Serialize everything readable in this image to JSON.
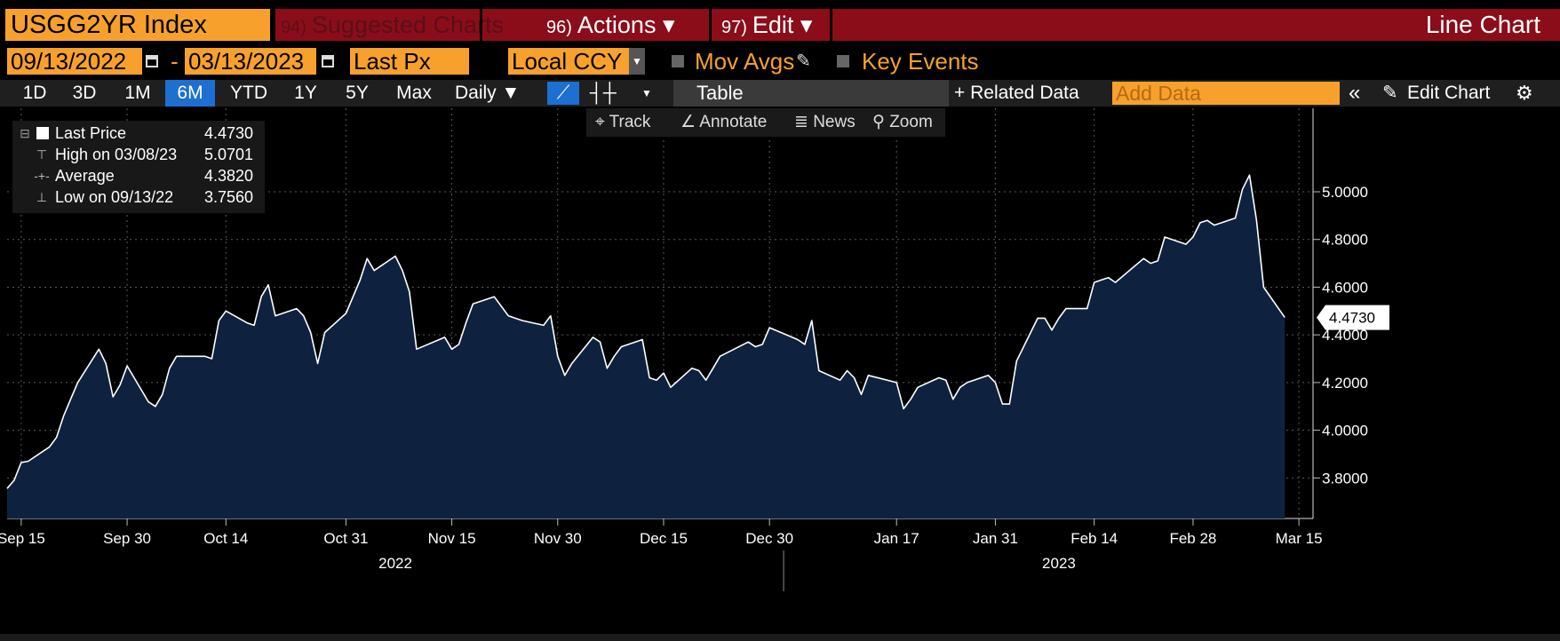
{
  "header": {
    "ticker": "USGG2YR Index",
    "suggested": {
      "num": "94)",
      "label": "Suggested Charts"
    },
    "actions": {
      "num": "96)",
      "label": "Actions ▾"
    },
    "edit": {
      "num": "97)",
      "label": "Edit ▾"
    },
    "chart_type": "Line Chart"
  },
  "controls": {
    "start_date": "09/13/2022",
    "end_date": "03/13/2023",
    "dash": "-",
    "field": "Last Px",
    "currency": "Local CCY",
    "mov_avgs": "Mov Avgs",
    "key_events": "Key Events"
  },
  "ranges": [
    "1D",
    "3D",
    "1M",
    "6M",
    "YTD",
    "1Y",
    "5Y",
    "Max"
  ],
  "active_range": "6M",
  "periodicity": "Daily ▼",
  "table_label": "Table",
  "related_data": "+ Related Data",
  "add_data_placeholder": "Add Data",
  "edit_chart": "Edit Chart",
  "tools": {
    "track": "Track",
    "annotate": "Annotate",
    "news": "News",
    "zoom": "Zoom"
  },
  "legend": [
    {
      "label": "Last Price",
      "value": "4.4730"
    },
    {
      "label": "High on 03/08/23",
      "value": "5.0701"
    },
    {
      "label": "Average",
      "value": "4.3820"
    },
    {
      "label": "Low on 09/13/22",
      "value": "3.7560"
    }
  ],
  "colors": {
    "accent": "#f7a12c",
    "menu": "#8b0d1a",
    "area": "#0e2240",
    "line": "#ffffff",
    "active": "#1d6fd1"
  },
  "chart_data": {
    "type": "area",
    "title": "",
    "ylim": [
      3.63,
      5.35
    ],
    "yticks": [
      3.8,
      4.0,
      4.2,
      4.4,
      4.6,
      4.8,
      5.0
    ],
    "ytick_labels": [
      "3.8000",
      "4.0000",
      "4.2000",
      "4.4000",
      "4.6000",
      "4.8000",
      "5.0000"
    ],
    "x_axis_range": [
      "2022-09-13",
      "2023-03-17"
    ],
    "xticks": [
      {
        "date": "2022-09-15",
        "label": "Sep 15"
      },
      {
        "date": "2022-09-30",
        "label": "Sep 30"
      },
      {
        "date": "2022-10-14",
        "label": "Oct 14"
      },
      {
        "date": "2022-10-31",
        "label": "Oct 31"
      },
      {
        "date": "2022-11-15",
        "label": "Nov 15"
      },
      {
        "date": "2022-11-30",
        "label": "Nov 30"
      },
      {
        "date": "2022-12-15",
        "label": "Dec 15"
      },
      {
        "date": "2022-12-30",
        "label": "Dec 30"
      },
      {
        "date": "2023-01-17",
        "label": "Jan 17"
      },
      {
        "date": "2023-01-31",
        "label": "Jan 31"
      },
      {
        "date": "2023-02-14",
        "label": "Feb 14"
      },
      {
        "date": "2023-02-28",
        "label": "Feb 28"
      },
      {
        "date": "2023-03-15",
        "label": "Mar 15"
      }
    ],
    "years": [
      {
        "date": "2022-11-07",
        "label": "2022"
      },
      {
        "date": "2023-02-09",
        "label": "2023"
      }
    ],
    "year_divider_date": "2023-01-01",
    "last_value_label": "4.4730",
    "grid": true,
    "x": [
      "2022-09-13",
      "2022-09-14",
      "2022-09-15",
      "2022-09-16",
      "2022-09-19",
      "2022-09-20",
      "2022-09-21",
      "2022-09-22",
      "2022-09-23",
      "2022-09-26",
      "2022-09-27",
      "2022-09-28",
      "2022-09-29",
      "2022-09-30",
      "2022-10-03",
      "2022-10-04",
      "2022-10-05",
      "2022-10-06",
      "2022-10-07",
      "2022-10-11",
      "2022-10-12",
      "2022-10-13",
      "2022-10-14",
      "2022-10-17",
      "2022-10-18",
      "2022-10-19",
      "2022-10-20",
      "2022-10-21",
      "2022-10-24",
      "2022-10-25",
      "2022-10-26",
      "2022-10-27",
      "2022-10-28",
      "2022-10-31",
      "2022-11-01",
      "2022-11-02",
      "2022-11-03",
      "2022-11-04",
      "2022-11-07",
      "2022-11-08",
      "2022-11-09",
      "2022-11-10",
      "2022-11-14",
      "2022-11-15",
      "2022-11-16",
      "2022-11-17",
      "2022-11-18",
      "2022-11-21",
      "2022-11-22",
      "2022-11-23",
      "2022-11-25",
      "2022-11-28",
      "2022-11-29",
      "2022-11-30",
      "2022-12-01",
      "2022-12-02",
      "2022-12-05",
      "2022-12-06",
      "2022-12-07",
      "2022-12-08",
      "2022-12-09",
      "2022-12-12",
      "2022-12-13",
      "2022-12-14",
      "2022-12-15",
      "2022-12-16",
      "2022-12-19",
      "2022-12-20",
      "2022-12-21",
      "2022-12-22",
      "2022-12-23",
      "2022-12-27",
      "2022-12-28",
      "2022-12-29",
      "2022-12-30",
      "2023-01-03",
      "2023-01-04",
      "2023-01-05",
      "2023-01-06",
      "2023-01-09",
      "2023-01-10",
      "2023-01-11",
      "2023-01-12",
      "2023-01-13",
      "2023-01-17",
      "2023-01-18",
      "2023-01-19",
      "2023-01-20",
      "2023-01-23",
      "2023-01-24",
      "2023-01-25",
      "2023-01-26",
      "2023-01-27",
      "2023-01-30",
      "2023-01-31",
      "2023-02-01",
      "2023-02-02",
      "2023-02-03",
      "2023-02-06",
      "2023-02-07",
      "2023-02-08",
      "2023-02-09",
      "2023-02-10",
      "2023-02-13",
      "2023-02-14",
      "2023-02-15",
      "2023-02-16",
      "2023-02-17",
      "2023-02-21",
      "2023-02-22",
      "2023-02-23",
      "2023-02-24",
      "2023-02-27",
      "2023-02-28",
      "2023-03-01",
      "2023-03-02",
      "2023-03-03",
      "2023-03-06",
      "2023-03-07",
      "2023-03-08",
      "2023-03-09",
      "2023-03-10",
      "2023-03-13"
    ],
    "series": [
      {
        "values": [
          3.756,
          3.79,
          3.865,
          3.87,
          3.93,
          3.97,
          4.06,
          4.13,
          4.2,
          4.34,
          4.28,
          4.14,
          4.19,
          4.27,
          4.12,
          4.1,
          4.15,
          4.26,
          4.31,
          4.31,
          4.3,
          4.46,
          4.5,
          4.45,
          4.44,
          4.56,
          4.61,
          4.48,
          4.51,
          4.48,
          4.41,
          4.28,
          4.41,
          4.49,
          4.56,
          4.63,
          4.72,
          4.67,
          4.73,
          4.67,
          4.58,
          4.34,
          4.39,
          4.34,
          4.36,
          4.45,
          4.53,
          4.56,
          4.52,
          4.48,
          4.46,
          4.44,
          4.48,
          4.31,
          4.23,
          4.28,
          4.39,
          4.37,
          4.26,
          4.31,
          4.35,
          4.38,
          4.22,
          4.21,
          4.24,
          4.18,
          4.26,
          4.25,
          4.21,
          4.26,
          4.31,
          4.37,
          4.35,
          4.36,
          4.43,
          4.38,
          4.36,
          4.46,
          4.25,
          4.21,
          4.25,
          4.22,
          4.15,
          4.23,
          4.2,
          4.09,
          4.13,
          4.18,
          4.22,
          4.21,
          4.13,
          4.18,
          4.2,
          4.23,
          4.2,
          4.11,
          4.11,
          4.29,
          4.47,
          4.47,
          4.42,
          4.47,
          4.51,
          4.51,
          4.62,
          4.63,
          4.64,
          4.62,
          4.72,
          4.7,
          4.71,
          4.81,
          4.78,
          4.81,
          4.87,
          4.88,
          4.86,
          4.89,
          5.01,
          5.0701,
          4.88,
          4.6,
          4.473
        ]
      }
    ]
  }
}
